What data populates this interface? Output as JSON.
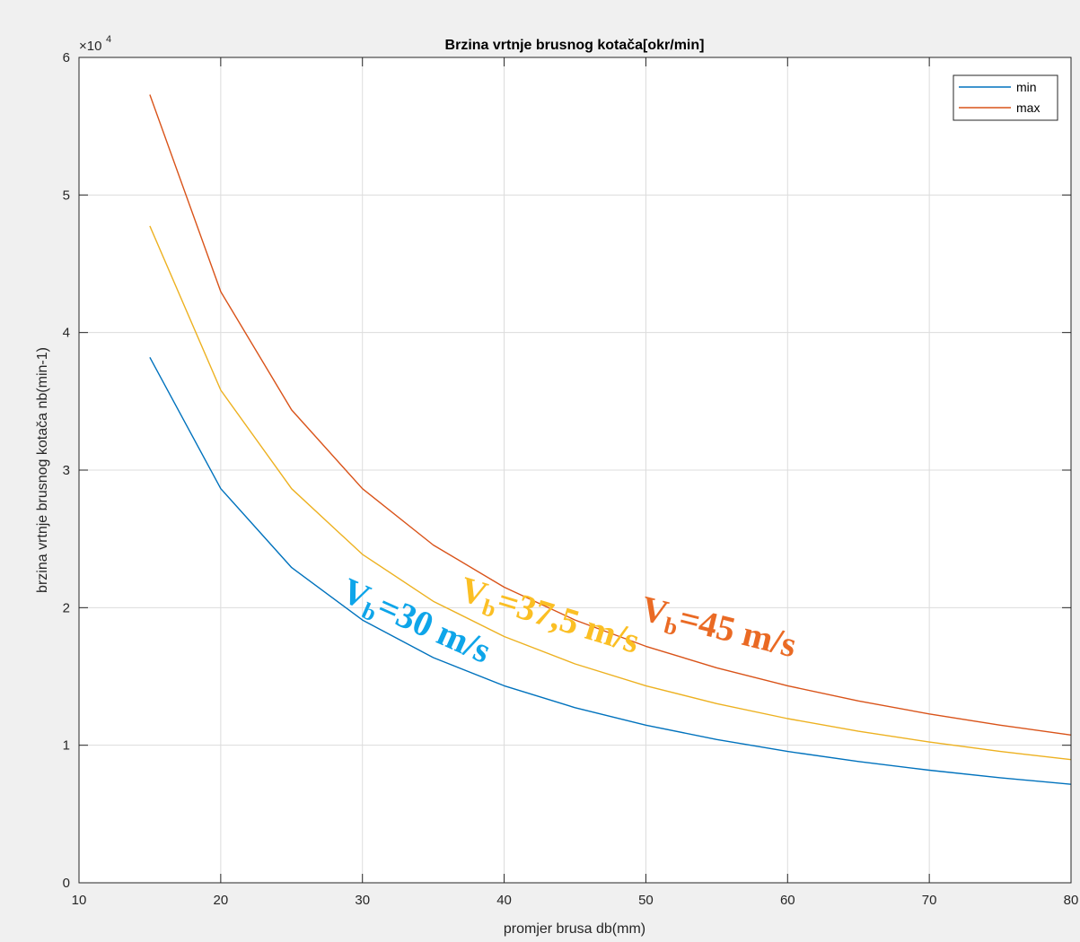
{
  "chart_data": {
    "type": "line",
    "title": "Brzina vrtnje brusnog kotača[okr/min]",
    "xlabel": "promjer brusa db(mm)",
    "ylabel": "brzina vrtnje brusnog kotača nb(min-1)",
    "xlim": [
      10,
      80
    ],
    "ylim": [
      0,
      60000
    ],
    "y_exponent_label": "×10",
    "y_exponent_power": "4",
    "xticks": [
      "10",
      "20",
      "30",
      "40",
      "50",
      "60",
      "70",
      "80"
    ],
    "yticks": [
      "0",
      "1",
      "2",
      "3",
      "4",
      "5",
      "6"
    ],
    "grid": true,
    "legend_position": "top-right",
    "x": [
      15,
      20,
      25,
      30,
      35,
      40,
      45,
      50,
      55,
      60,
      65,
      70,
      75,
      80
    ],
    "series": [
      {
        "name": "min",
        "color": "#0072bd",
        "in_legend": true,
        "values": [
          38197,
          28648,
          22918,
          19099,
          16370,
          14324,
          12732,
          11459,
          10417,
          9549,
          8815,
          8185,
          7639,
          7162
        ]
      },
      {
        "name": "max",
        "color": "#d95319",
        "in_legend": true,
        "values": [
          57296,
          42972,
          34377,
          28648,
          24555,
          21486,
          19099,
          17189,
          15626,
          14324,
          13222,
          12277,
          11459,
          10743
        ]
      },
      {
        "color": "#edb120",
        "in_legend": false,
        "values": [
          47746,
          35810,
          28648,
          23873,
          20463,
          17905,
          15915,
          14324,
          13022,
          11937,
          11018,
          10231,
          9549,
          8952
        ]
      }
    ],
    "annotations": [
      {
        "main": "V",
        "sub": "b",
        "rest": "=30 m/s",
        "color": "#0ea5e9"
      },
      {
        "main": "V",
        "sub": "b",
        "rest": "=37,5 m/s",
        "color": "#fbbf24"
      },
      {
        "main": "V",
        "sub": "b",
        "rest": "=45 m/s",
        "color": "#ea6a24"
      }
    ]
  }
}
